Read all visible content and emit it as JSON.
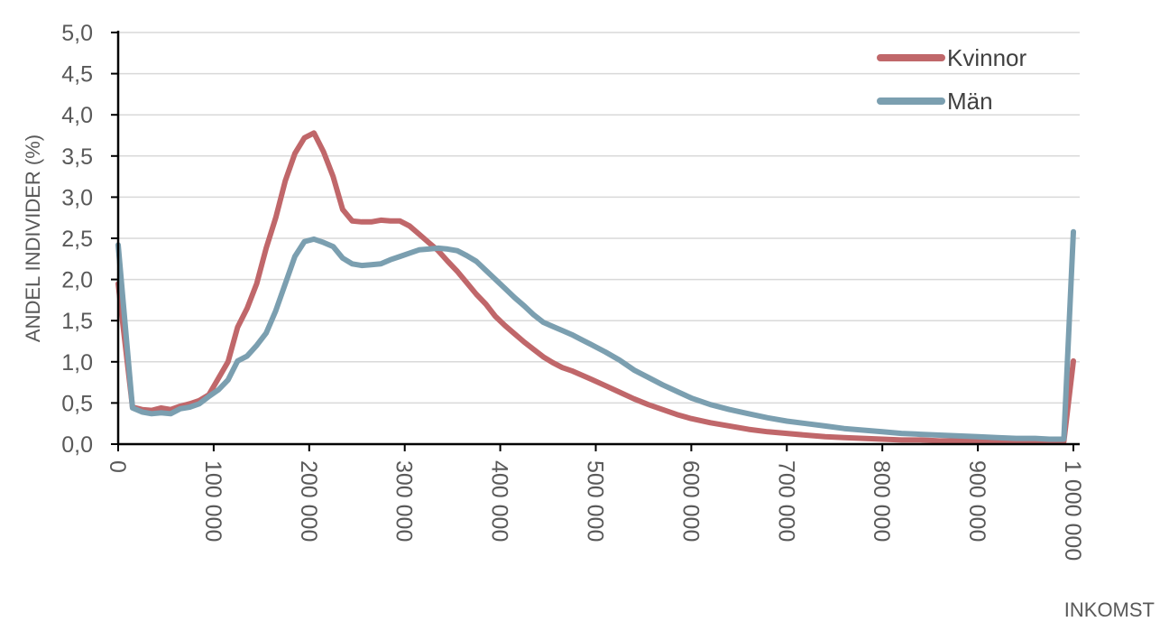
{
  "chart_data": {
    "type": "line",
    "xlabel": "INKOMST",
    "ylabel": "ANDEL INDIVIDER (%)",
    "xlim": [
      0,
      1000000
    ],
    "ylim": [
      0,
      5
    ],
    "x_ticks": [
      0,
      100000,
      200000,
      300000,
      400000,
      500000,
      600000,
      700000,
      800000,
      900000,
      1000000
    ],
    "x_tick_labels": [
      "0",
      "100 000",
      "200 000",
      "300 000",
      "400 000",
      "500 000",
      "600 000",
      "700 000",
      "800 000",
      "900 000",
      "1 000 000"
    ],
    "y_ticks": [
      0,
      0.5,
      1,
      1.5,
      2,
      2.5,
      3,
      3.5,
      4,
      4.5,
      5
    ],
    "y_tick_labels": [
      "0,0",
      "0,5",
      "1,0",
      "1,5",
      "2,0",
      "2,5",
      "3,0",
      "3,5",
      "4,0",
      "4,5",
      "5,0"
    ],
    "grid": "horizontal",
    "legend_position": "top-right",
    "series": [
      {
        "name": "Kvinnor",
        "color": "#c0676a",
        "points": [
          [
            0,
            1.95
          ],
          [
            15000,
            0.45
          ],
          [
            25000,
            0.42
          ],
          [
            35000,
            0.41
          ],
          [
            45000,
            0.44
          ],
          [
            55000,
            0.42
          ],
          [
            65000,
            0.46
          ],
          [
            75000,
            0.49
          ],
          [
            85000,
            0.53
          ],
          [
            95000,
            0.6
          ],
          [
            105000,
            0.8
          ],
          [
            115000,
            1.0
          ],
          [
            125000,
            1.42
          ],
          [
            135000,
            1.65
          ],
          [
            145000,
            1.95
          ],
          [
            155000,
            2.38
          ],
          [
            165000,
            2.75
          ],
          [
            175000,
            3.2
          ],
          [
            185000,
            3.53
          ],
          [
            195000,
            3.72
          ],
          [
            205000,
            3.78
          ],
          [
            215000,
            3.55
          ],
          [
            225000,
            3.25
          ],
          [
            235000,
            2.85
          ],
          [
            245000,
            2.71
          ],
          [
            255000,
            2.7
          ],
          [
            265000,
            2.7
          ],
          [
            275000,
            2.72
          ],
          [
            285000,
            2.71
          ],
          [
            295000,
            2.71
          ],
          [
            305000,
            2.65
          ],
          [
            315000,
            2.55
          ],
          [
            325000,
            2.45
          ],
          [
            335000,
            2.35
          ],
          [
            345000,
            2.22
          ],
          [
            355000,
            2.1
          ],
          [
            365000,
            1.96
          ],
          [
            375000,
            1.82
          ],
          [
            385000,
            1.7
          ],
          [
            395000,
            1.55
          ],
          [
            405000,
            1.44
          ],
          [
            415000,
            1.34
          ],
          [
            425000,
            1.24
          ],
          [
            435000,
            1.15
          ],
          [
            445000,
            1.06
          ],
          [
            455000,
            0.99
          ],
          [
            465000,
            0.93
          ],
          [
            475000,
            0.89
          ],
          [
            485000,
            0.84
          ],
          [
            495000,
            0.79
          ],
          [
            510000,
            0.71
          ],
          [
            525000,
            0.63
          ],
          [
            540000,
            0.55
          ],
          [
            555000,
            0.48
          ],
          [
            570000,
            0.42
          ],
          [
            585000,
            0.36
          ],
          [
            600000,
            0.31
          ],
          [
            620000,
            0.26
          ],
          [
            640000,
            0.22
          ],
          [
            660000,
            0.18
          ],
          [
            680000,
            0.15
          ],
          [
            700000,
            0.13
          ],
          [
            720000,
            0.11
          ],
          [
            740000,
            0.09
          ],
          [
            760000,
            0.08
          ],
          [
            780000,
            0.07
          ],
          [
            800000,
            0.06
          ],
          [
            820000,
            0.05
          ],
          [
            840000,
            0.05
          ],
          [
            860000,
            0.04
          ],
          [
            880000,
            0.04
          ],
          [
            900000,
            0.04
          ],
          [
            920000,
            0.04
          ],
          [
            940000,
            0.03
          ],
          [
            960000,
            0.03
          ],
          [
            975000,
            0.03
          ],
          [
            990000,
            0.03
          ],
          [
            1000000,
            1.01
          ]
        ]
      },
      {
        "name": "Män",
        "color": "#7b9fb0",
        "points": [
          [
            0,
            2.42
          ],
          [
            15000,
            0.44
          ],
          [
            25000,
            0.39
          ],
          [
            35000,
            0.37
          ],
          [
            45000,
            0.38
          ],
          [
            55000,
            0.37
          ],
          [
            65000,
            0.43
          ],
          [
            75000,
            0.45
          ],
          [
            85000,
            0.49
          ],
          [
            95000,
            0.58
          ],
          [
            105000,
            0.66
          ],
          [
            115000,
            0.78
          ],
          [
            125000,
            1.01
          ],
          [
            135000,
            1.07
          ],
          [
            145000,
            1.2
          ],
          [
            155000,
            1.35
          ],
          [
            165000,
            1.62
          ],
          [
            175000,
            1.95
          ],
          [
            185000,
            2.28
          ],
          [
            195000,
            2.46
          ],
          [
            205000,
            2.49
          ],
          [
            215000,
            2.45
          ],
          [
            225000,
            2.4
          ],
          [
            235000,
            2.26
          ],
          [
            245000,
            2.19
          ],
          [
            255000,
            2.17
          ],
          [
            265000,
            2.18
          ],
          [
            275000,
            2.19
          ],
          [
            285000,
            2.24
          ],
          [
            295000,
            2.28
          ],
          [
            305000,
            2.32
          ],
          [
            315000,
            2.36
          ],
          [
            325000,
            2.37
          ],
          [
            335000,
            2.38
          ],
          [
            345000,
            2.37
          ],
          [
            355000,
            2.35
          ],
          [
            365000,
            2.29
          ],
          [
            375000,
            2.22
          ],
          [
            385000,
            2.11
          ],
          [
            395000,
            2.0
          ],
          [
            405000,
            1.89
          ],
          [
            415000,
            1.78
          ],
          [
            425000,
            1.68
          ],
          [
            435000,
            1.57
          ],
          [
            445000,
            1.48
          ],
          [
            455000,
            1.43
          ],
          [
            465000,
            1.38
          ],
          [
            475000,
            1.33
          ],
          [
            485000,
            1.27
          ],
          [
            495000,
            1.21
          ],
          [
            510000,
            1.12
          ],
          [
            525000,
            1.02
          ],
          [
            540000,
            0.9
          ],
          [
            555000,
            0.81
          ],
          [
            570000,
            0.72
          ],
          [
            585000,
            0.64
          ],
          [
            600000,
            0.56
          ],
          [
            620000,
            0.48
          ],
          [
            640000,
            0.42
          ],
          [
            660000,
            0.37
          ],
          [
            680000,
            0.32
          ],
          [
            700000,
            0.28
          ],
          [
            720000,
            0.25
          ],
          [
            740000,
            0.22
          ],
          [
            760000,
            0.19
          ],
          [
            780000,
            0.17
          ],
          [
            800000,
            0.15
          ],
          [
            820000,
            0.13
          ],
          [
            840000,
            0.12
          ],
          [
            860000,
            0.11
          ],
          [
            880000,
            0.1
          ],
          [
            900000,
            0.09
          ],
          [
            920000,
            0.08
          ],
          [
            940000,
            0.07
          ],
          [
            960000,
            0.07
          ],
          [
            975000,
            0.06
          ],
          [
            990000,
            0.06
          ],
          [
            1000000,
            2.58
          ]
        ]
      }
    ]
  }
}
